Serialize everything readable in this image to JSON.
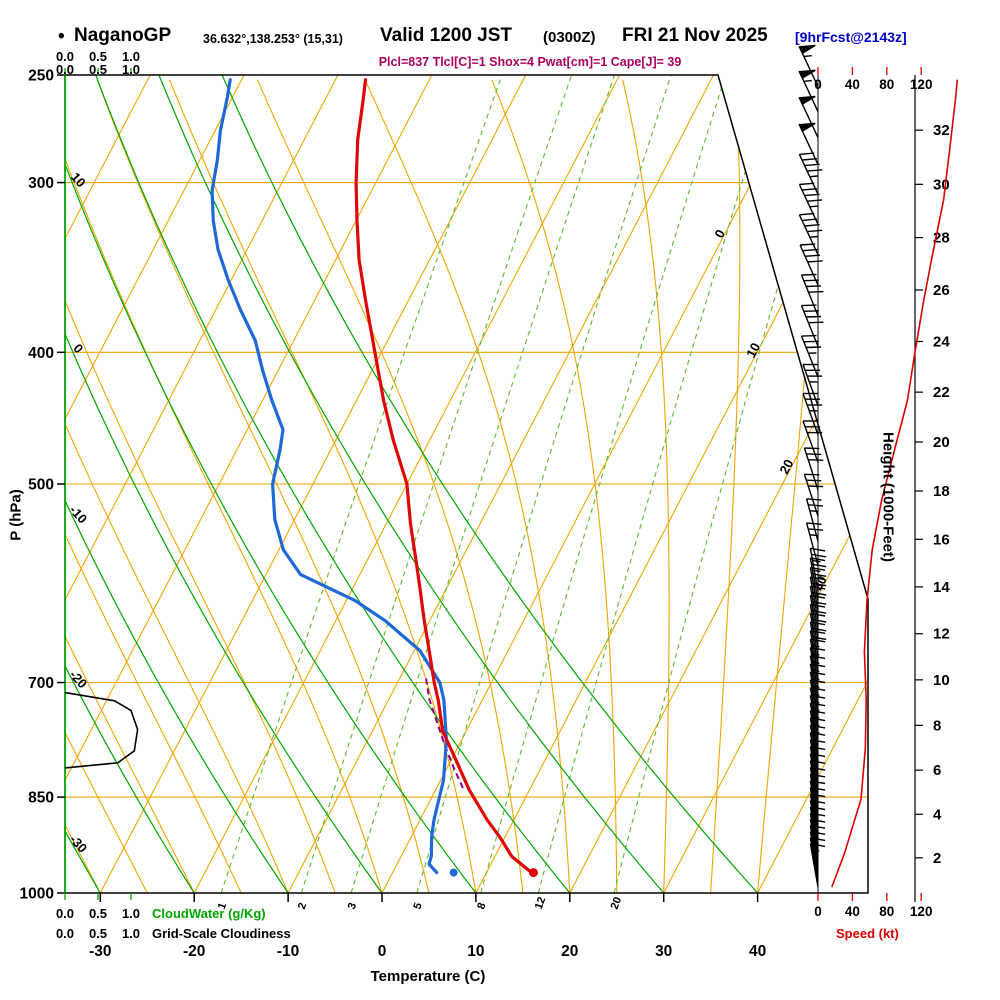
{
  "header": {
    "bullet": "•",
    "station": "NaganoGP",
    "coords": "36.632°,138.253° (15,31)",
    "valid": "Valid 1200 JST",
    "zulu": "(0300Z)",
    "date": "FRI 21 Nov 2025",
    "fcst": "[9hrFcst@2143z]",
    "params": "Plcl=837 Tlcl[C]=1 Shox=4 Pwat[cm]=1 Cape[J]= 39"
  },
  "axes": {
    "pressure": {
      "label": "P (hPa)",
      "ticks": [
        250,
        300,
        400,
        500,
        700,
        850,
        1000
      ]
    },
    "temperature": {
      "label": "Temperature (C)",
      "ticks": [
        -30,
        -20,
        -10,
        0,
        10,
        20,
        30,
        40
      ]
    },
    "height": {
      "label": "Height (1000-Feet)",
      "ticks": [
        2,
        4,
        6,
        8,
        10,
        12,
        14,
        16,
        18,
        20,
        22,
        24,
        26,
        28,
        30,
        32
      ]
    },
    "speed": {
      "label": "Speed (kt)",
      "ticks": [
        0,
        40,
        80,
        120
      ]
    },
    "cloudwater": {
      "label": "CloudWater (g/Kg)",
      "ticks": [
        "0.0",
        "0.5",
        "1.0"
      ]
    },
    "cloudiness": {
      "label": "Grid-Scale Cloudiness",
      "ticks": [
        "0.0",
        "0.5",
        "1.0"
      ]
    }
  },
  "colors": {
    "orange": "#f0a500",
    "green": "#00a600",
    "light_green": "#5cb832",
    "red": "#dd0000",
    "temp_red": "#e00505",
    "dew_blue": "#1e68d8",
    "purple": "#8a008a",
    "header_blue": "#0000cc",
    "params_magenta": "#aa0060"
  },
  "chart_data": {
    "type": "skew-t log-p sounding",
    "pressure_range_hpa": [
      250,
      1000
    ],
    "isobar_lines": [
      300,
      400,
      500,
      700,
      850
    ],
    "isotherm_labels": [
      0,
      10,
      20,
      30
    ],
    "dry_adiabat_labels": [
      10,
      0,
      -10,
      -20,
      -30
    ],
    "dry_adiabats_c": [
      -30,
      -20,
      -10,
      0,
      10,
      20,
      30,
      40
    ],
    "moist_adiabats_c": [
      -30,
      -25,
      -20,
      -15,
      -10,
      -5,
      0,
      5,
      10,
      15,
      20,
      25,
      30,
      35,
      40
    ],
    "mixing_ratio_g_kg": [
      1,
      2,
      3,
      5,
      8,
      12,
      20
    ],
    "temperature_profile": [
      [
        966,
        14.8
      ],
      [
        940,
        11.8
      ],
      [
        910,
        9.5
      ],
      [
        884,
        7.2
      ],
      [
        840,
        3.6
      ],
      [
        798,
        0.5
      ],
      [
        760,
        -2.5
      ],
      [
        721,
        -4.7
      ],
      [
        700,
        -6.1
      ],
      [
        660,
        -8.6
      ],
      [
        630,
        -10.6
      ],
      [
        600,
        -12.6
      ],
      [
        569,
        -14.8
      ],
      [
        535,
        -17.4
      ],
      [
        500,
        -20.0
      ],
      [
        464,
        -23.9
      ],
      [
        434,
        -27.1
      ],
      [
        400,
        -30.7
      ],
      [
        366,
        -34.6
      ],
      [
        342,
        -37.5
      ],
      [
        320,
        -39.9
      ],
      [
        300,
        -42.1
      ],
      [
        279,
        -44.3
      ],
      [
        260,
        -46.0
      ],
      [
        252,
        -46.8
      ]
    ],
    "dewpoint_profile": [
      [
        966,
        4.7
      ],
      [
        952,
        3.4
      ],
      [
        939,
        3.2
      ],
      [
        910,
        2.2
      ],
      [
        884,
        1.5
      ],
      [
        850,
        0.8
      ],
      [
        826,
        0.3
      ],
      [
        772,
        -1.6
      ],
      [
        721,
        -4.1
      ],
      [
        700,
        -5.5
      ],
      [
        663,
        -9.4
      ],
      [
        630,
        -14.8
      ],
      [
        609,
        -19.1
      ],
      [
        583,
        -26.3
      ],
      [
        559,
        -29.5
      ],
      [
        531,
        -32.1
      ],
      [
        500,
        -34.3
      ],
      [
        472,
        -35.4
      ],
      [
        456,
        -36.2
      ],
      [
        434,
        -39.0
      ],
      [
        412,
        -41.7
      ],
      [
        392,
        -44.1
      ],
      [
        372,
        -47.4
      ],
      [
        354,
        -50.3
      ],
      [
        336,
        -53.1
      ],
      [
        320,
        -55.2
      ],
      [
        304,
        -57.0
      ],
      [
        289,
        -58.1
      ],
      [
        275,
        -59.4
      ],
      [
        260,
        -60.5
      ],
      [
        252,
        -61.2
      ]
    ],
    "parcel_path": [
      [
        837,
        2.8
      ],
      [
        810,
        0.8
      ],
      [
        780,
        -1.4
      ],
      [
        750,
        -3.5
      ],
      [
        720,
        -5.7
      ],
      [
        695,
        -7.2
      ]
    ],
    "surface_points": {
      "temperature": [
        966,
        15.0
      ],
      "dewpoint": [
        966,
        6.5
      ]
    },
    "cloudiness_profile": [
      [
        712,
        0
      ],
      [
        722,
        0.75
      ],
      [
        734,
        1.0
      ],
      [
        758,
        1.1
      ],
      [
        786,
        1.05
      ],
      [
        802,
        0.8
      ],
      [
        809,
        0
      ]
    ],
    "speed_profile_kt": [
      [
        990,
        16
      ],
      [
        934,
        31
      ],
      [
        853,
        50
      ],
      [
        783,
        55
      ],
      [
        721,
        56
      ],
      [
        664,
        54
      ],
      [
        609,
        57
      ],
      [
        559,
        63
      ],
      [
        514,
        74
      ],
      [
        472,
        89
      ],
      [
        434,
        104
      ],
      [
        399,
        113
      ],
      [
        366,
        123
      ],
      [
        337,
        134
      ],
      [
        309,
        146
      ],
      [
        284,
        153
      ],
      [
        260,
        160
      ],
      [
        252,
        162
      ]
    ],
    "wind_barbs": [
      [
        255,
        55,
        335
      ],
      [
        266,
        55,
        335
      ],
      [
        278,
        50,
        335
      ],
      [
        291,
        50,
        335
      ],
      [
        306,
        45,
        335
      ],
      [
        322,
        45,
        335
      ],
      [
        339,
        45,
        335
      ],
      [
        357,
        40,
        336
      ],
      [
        376,
        40,
        338
      ],
      [
        396,
        40,
        338
      ],
      [
        417,
        35,
        338
      ],
      [
        438,
        35,
        340
      ],
      [
        460,
        35,
        340
      ],
      [
        482,
        30,
        340
      ],
      [
        505,
        30,
        342
      ],
      [
        528,
        30,
        342
      ],
      [
        551,
        25,
        345
      ],
      [
        574,
        25,
        345
      ],
      [
        600,
        25,
        350
      ],
      [
        610,
        25,
        350
      ],
      [
        620,
        20,
        350
      ],
      [
        630,
        20,
        350
      ],
      [
        640,
        20,
        350
      ],
      [
        650,
        20,
        350
      ],
      [
        660,
        20,
        350
      ],
      [
        670,
        20,
        350
      ],
      [
        680,
        20,
        350
      ],
      [
        690,
        20,
        350
      ],
      [
        700,
        15,
        350
      ],
      [
        710,
        15,
        350
      ],
      [
        720,
        15,
        350
      ],
      [
        730,
        15,
        350
      ],
      [
        740,
        15,
        350
      ],
      [
        750,
        15,
        350
      ],
      [
        760,
        15,
        350
      ],
      [
        770,
        15,
        350
      ],
      [
        780,
        15,
        350
      ],
      [
        790,
        15,
        350
      ],
      [
        800,
        15,
        350
      ],
      [
        810,
        15,
        350
      ],
      [
        820,
        10,
        350
      ],
      [
        830,
        10,
        350
      ],
      [
        840,
        10,
        350
      ],
      [
        850,
        10,
        350
      ],
      [
        860,
        10,
        350
      ],
      [
        870,
        10,
        350
      ],
      [
        880,
        10,
        350
      ],
      [
        890,
        10,
        350
      ],
      [
        900,
        10,
        350
      ],
      [
        910,
        10,
        350
      ],
      [
        920,
        10,
        350
      ],
      [
        930,
        10,
        350
      ],
      [
        940,
        10,
        350
      ],
      [
        950,
        10,
        350
      ],
      [
        960,
        15,
        350
      ],
      [
        970,
        15,
        350
      ],
      [
        980,
        15,
        350
      ],
      [
        990,
        15,
        350
      ]
    ]
  }
}
